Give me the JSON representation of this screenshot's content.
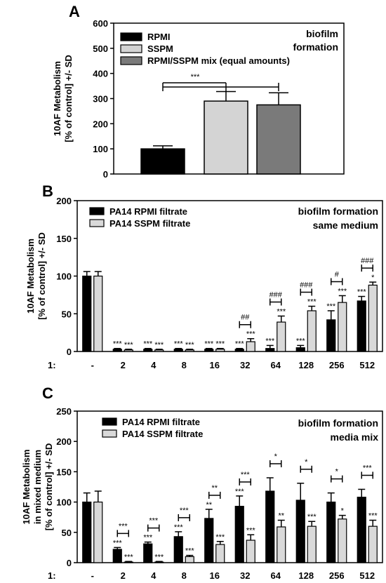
{
  "chart_data": [
    {
      "panel": "A",
      "type": "bar",
      "ylabel_lines": [
        "10AF Metabolism",
        "[% of control] +/- SD"
      ],
      "ylim": [
        0,
        600
      ],
      "yticks": [
        "0",
        "100",
        "200",
        "300",
        "400",
        "500",
        "600"
      ],
      "annotation_lines": [
        "biofilm",
        "formation"
      ],
      "legend_position": "top-left",
      "series": [
        {
          "name": "RPMI",
          "value": 100,
          "sd": 12,
          "color": "#000000"
        },
        {
          "name": "SSPM",
          "value": 290,
          "sd": 38,
          "color": "#d4d4d4"
        },
        {
          "name": "RPMI/SSPM mix (equal amounts)",
          "value": 275,
          "sd": 48,
          "color": "#7a7a7a"
        }
      ],
      "significance": "***"
    },
    {
      "panel": "B",
      "type": "bar",
      "ylabel_lines": [
        "10AF Metabolism",
        "[% of control] +/- SD"
      ],
      "ylim": [
        0,
        200
      ],
      "yticks": [
        "0",
        "50",
        "100",
        "150",
        "200"
      ],
      "x_prefix": "1:",
      "categories": [
        "-",
        "2",
        "4",
        "8",
        "16",
        "32",
        "64",
        "128",
        "256",
        "512"
      ],
      "annotation_lines": [
        "biofilm formation",
        "same medium"
      ],
      "legend_position": "top-left",
      "series": [
        {
          "name": "PA14 RPMI filtrate",
          "color": "#000000",
          "values": [
            100,
            3,
            3,
            3,
            3,
            3,
            4,
            5,
            42,
            67
          ],
          "sd": [
            6,
            1,
            1,
            1,
            1,
            1,
            4,
            3,
            12,
            6
          ],
          "stars": [
            "",
            "***",
            "***",
            "***",
            "***",
            "***",
            "***",
            "***",
            "***",
            "***"
          ]
        },
        {
          "name": "PA14 SSPM filtrate",
          "color": "#d9d9d9",
          "values": [
            100,
            2,
            2,
            2,
            3,
            13,
            39,
            54,
            65,
            88
          ],
          "sd": [
            6,
            1,
            1,
            1,
            1,
            4,
            8,
            6,
            9,
            4
          ],
          "stars": [
            "",
            "***",
            "***",
            "***",
            "***",
            "***",
            "***",
            "***",
            "***",
            "*"
          ]
        }
      ],
      "brackets": [
        "",
        "",
        "",
        "",
        "",
        "##",
        "###",
        "###",
        "#",
        "###"
      ]
    },
    {
      "panel": "C",
      "type": "bar",
      "ylabel_lines": [
        "10AF Metabolism",
        "in mixed medium",
        "[% of control] +/- SD"
      ],
      "ylim": [
        0,
        250
      ],
      "yticks": [
        "0",
        "50",
        "100",
        "150",
        "200",
        "250"
      ],
      "x_prefix": "1:",
      "categories": [
        "-",
        "2",
        "4",
        "8",
        "16",
        "32",
        "64",
        "128",
        "256",
        "512"
      ],
      "annotation_lines": [
        "biofilm formation",
        "media mix"
      ],
      "legend_position": "top-left",
      "series": [
        {
          "name": "PA14 RPMI filtrate",
          "color": "#000000",
          "values": [
            100,
            22,
            31,
            43,
            73,
            93,
            118,
            103,
            100,
            108
          ],
          "sd": [
            15,
            3,
            3,
            8,
            15,
            17,
            22,
            28,
            15,
            13
          ],
          "stars": [
            "",
            "***",
            "***",
            "***",
            "**",
            "***",
            "",
            "",
            "",
            ""
          ]
        },
        {
          "name": "PA14 SSPM filtrate",
          "color": "#d9d9d9",
          "values": [
            100,
            1,
            1,
            10,
            30,
            37,
            59,
            60,
            72,
            60
          ],
          "sd": [
            18,
            1,
            1,
            2,
            5,
            9,
            11,
            8,
            6,
            10
          ],
          "stars": [
            "",
            "***",
            "***",
            "***",
            "***",
            "***",
            "**",
            "***",
            "*",
            "***"
          ]
        }
      ],
      "brackets": [
        "",
        "***",
        "***",
        "***",
        "**",
        "***",
        "*",
        "*",
        "*",
        "***"
      ]
    }
  ],
  "panel_letters": [
    "A",
    "B",
    "C"
  ]
}
